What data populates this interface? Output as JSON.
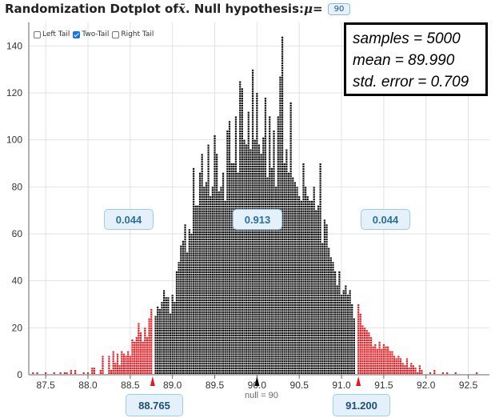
{
  "title": {
    "prefix": "Randomization Dotplot of ",
    "statistic": "x̄",
    "middle": ". Null hypothesis: ",
    "param": "μ",
    "equals": " = ",
    "null_value": "90"
  },
  "tail_options": {
    "left_tail": {
      "label": "Left Tail",
      "checked": false
    },
    "two_tail": {
      "label": "Two-Tail",
      "checked": true
    },
    "right_tail": {
      "label": "Right Tail",
      "checked": false
    }
  },
  "stats": {
    "samples": "samples = 5000",
    "mean": "mean = 89.990",
    "std_error": "std. error = 0.709"
  },
  "proportions": {
    "left": "0.044",
    "middle": "0.913",
    "right": "0.044"
  },
  "cutoffs": {
    "left": "88.765",
    "right": "91.200"
  },
  "null_label": "null = 90",
  "colors": {
    "tail": "#e8151b",
    "center": "#111111",
    "box_bg": "#e4f1fb",
    "box_border": "#9ccbec"
  },
  "chart_data": {
    "type": "dotplot",
    "xlim": [
      87.3,
      92.75
    ],
    "ylim": [
      0,
      150
    ],
    "x_ticks": [
      "87.5",
      "88.0",
      "88.5",
      "89.0",
      "89.5",
      "90.0",
      "90.5",
      "91.0",
      "91.5",
      "92.0",
      "92.5"
    ],
    "y_ticks": [
      "0",
      "20",
      "40",
      "60",
      "80",
      "100",
      "120",
      "140"
    ],
    "left_cutoff": 88.765,
    "right_cutoff": 91.2,
    "null_value": 90,
    "binwidth": 0.025,
    "sample_count": 5000,
    "bins": [
      [
        87.35,
        1
      ],
      [
        87.4,
        1
      ],
      [
        87.5,
        1
      ],
      [
        87.6,
        1
      ],
      [
        87.675,
        1
      ],
      [
        87.725,
        1
      ],
      [
        87.75,
        1
      ],
      [
        87.8,
        2
      ],
      [
        87.85,
        2
      ],
      [
        87.95,
        1
      ],
      [
        88.0,
        1
      ],
      [
        88.05,
        3
      ],
      [
        88.075,
        3
      ],
      [
        88.15,
        2
      ],
      [
        88.175,
        8
      ],
      [
        88.25,
        8
      ],
      [
        88.275,
        2
      ],
      [
        88.3,
        10
      ],
      [
        88.325,
        5
      ],
      [
        88.35,
        9
      ],
      [
        88.375,
        4
      ],
      [
        88.4,
        10
      ],
      [
        88.425,
        9
      ],
      [
        88.45,
        8
      ],
      [
        88.475,
        10
      ],
      [
        88.5,
        8
      ],
      [
        88.525,
        15
      ],
      [
        88.55,
        14
      ],
      [
        88.575,
        16
      ],
      [
        88.6,
        22
      ],
      [
        88.625,
        18
      ],
      [
        88.65,
        14
      ],
      [
        88.675,
        20
      ],
      [
        88.7,
        16
      ],
      [
        88.725,
        24
      ],
      [
        88.75,
        28
      ],
      [
        88.8,
        25
      ],
      [
        88.825,
        29
      ],
      [
        88.85,
        28
      ],
      [
        88.875,
        31
      ],
      [
        88.9,
        36
      ],
      [
        88.925,
        33
      ],
      [
        88.95,
        33
      ],
      [
        88.975,
        26
      ],
      [
        89.0,
        34
      ],
      [
        89.025,
        31
      ],
      [
        89.05,
        44
      ],
      [
        89.075,
        48
      ],
      [
        89.1,
        55
      ],
      [
        89.125,
        57
      ],
      [
        89.15,
        64
      ],
      [
        89.175,
        52
      ],
      [
        89.2,
        62
      ],
      [
        89.225,
        60
      ],
      [
        89.25,
        88
      ],
      [
        89.275,
        72
      ],
      [
        89.3,
        72
      ],
      [
        89.325,
        86
      ],
      [
        89.35,
        94
      ],
      [
        89.375,
        80
      ],
      [
        89.4,
        82
      ],
      [
        89.425,
        98
      ],
      [
        89.45,
        76
      ],
      [
        89.475,
        80
      ],
      [
        89.5,
        102
      ],
      [
        89.525,
        94
      ],
      [
        89.55,
        78
      ],
      [
        89.575,
        80
      ],
      [
        89.6,
        86
      ],
      [
        89.625,
        74
      ],
      [
        89.65,
        104
      ],
      [
        89.675,
        108
      ],
      [
        89.7,
        90
      ],
      [
        89.725,
        90
      ],
      [
        89.75,
        110
      ],
      [
        89.775,
        86
      ],
      [
        89.8,
        125
      ],
      [
        89.825,
        122
      ],
      [
        89.85,
        100
      ],
      [
        89.875,
        98
      ],
      [
        89.9,
        112
      ],
      [
        89.925,
        96
      ],
      [
        89.95,
        130
      ],
      [
        89.975,
        100
      ],
      [
        90.0,
        120
      ],
      [
        90.025,
        98
      ],
      [
        90.05,
        94
      ],
      [
        90.075,
        101
      ],
      [
        90.1,
        118
      ],
      [
        90.125,
        84
      ],
      [
        90.15,
        110
      ],
      [
        90.175,
        88
      ],
      [
        90.2,
        104
      ],
      [
        90.225,
        80
      ],
      [
        90.25,
        110
      ],
      [
        90.275,
        127
      ],
      [
        90.3,
        144
      ],
      [
        90.325,
        90
      ],
      [
        90.35,
        96
      ],
      [
        90.375,
        86
      ],
      [
        90.4,
        116
      ],
      [
        90.425,
        84
      ],
      [
        90.45,
        82
      ],
      [
        90.475,
        80
      ],
      [
        90.5,
        76
      ],
      [
        90.525,
        74
      ],
      [
        90.55,
        90
      ],
      [
        90.575,
        80
      ],
      [
        90.6,
        76
      ],
      [
        90.625,
        74
      ],
      [
        90.65,
        74
      ],
      [
        90.675,
        80
      ],
      [
        90.7,
        70
      ],
      [
        90.725,
        72
      ],
      [
        90.75,
        90
      ],
      [
        90.775,
        56
      ],
      [
        90.8,
        66
      ],
      [
        90.825,
        64
      ],
      [
        90.85,
        54
      ],
      [
        90.875,
        50
      ],
      [
        90.9,
        48
      ],
      [
        90.925,
        44
      ],
      [
        90.95,
        38
      ],
      [
        90.975,
        44
      ],
      [
        91.0,
        34
      ],
      [
        91.025,
        36
      ],
      [
        91.05,
        38
      ],
      [
        91.075,
        34
      ],
      [
        91.1,
        36
      ],
      [
        91.125,
        30
      ],
      [
        91.15,
        24
      ],
      [
        91.2,
        30
      ],
      [
        91.225,
        26
      ],
      [
        91.25,
        21
      ],
      [
        91.275,
        20
      ],
      [
        91.3,
        19
      ],
      [
        91.325,
        18
      ],
      [
        91.35,
        16
      ],
      [
        91.375,
        12
      ],
      [
        91.4,
        13
      ],
      [
        91.425,
        11
      ],
      [
        91.45,
        14
      ],
      [
        91.475,
        11
      ],
      [
        91.5,
        13
      ],
      [
        91.525,
        12
      ],
      [
        91.55,
        12
      ],
      [
        91.575,
        10
      ],
      [
        91.6,
        10
      ],
      [
        91.625,
        8
      ],
      [
        91.65,
        7
      ],
      [
        91.675,
        8
      ],
      [
        91.7,
        7
      ],
      [
        91.725,
        5
      ],
      [
        91.75,
        4
      ],
      [
        91.775,
        7
      ],
      [
        91.8,
        3
      ],
      [
        91.825,
        5
      ],
      [
        91.85,
        4
      ],
      [
        91.875,
        3
      ],
      [
        91.9,
        1
      ],
      [
        91.925,
        4
      ],
      [
        91.95,
        2
      ],
      [
        92.05,
        1
      ],
      [
        92.1,
        2
      ],
      [
        92.2,
        1
      ],
      [
        92.25,
        1
      ],
      [
        92.35,
        1
      ],
      [
        92.6,
        1
      ]
    ]
  }
}
